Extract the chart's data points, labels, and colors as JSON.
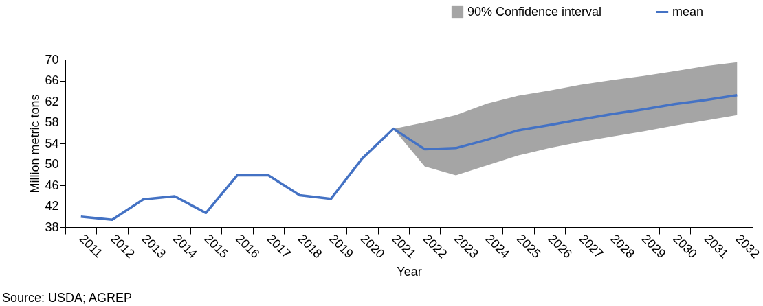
{
  "chart_data": {
    "type": "line",
    "ylabel": "Million metric tons",
    "xlabel": "Year",
    "categories": [
      "2011",
      "2012",
      "2013",
      "2014",
      "2015",
      "2016",
      "2017",
      "2018",
      "2019",
      "2020",
      "2021",
      "2022",
      "2023",
      "2024",
      "2025",
      "2026",
      "2027",
      "2028",
      "2029",
      "2030",
      "2031",
      "2032"
    ],
    "series": [
      {
        "name": "90% Confidence interval",
        "type": "area",
        "color": "#a5a5a5",
        "values": [
          null,
          null,
          null,
          null,
          null,
          null,
          null,
          null,
          null,
          null,
          null,
          null,
          null,
          null,
          null,
          null,
          null,
          null,
          null,
          null,
          null,
          null
        ],
        "lower": [
          null,
          null,
          null,
          null,
          null,
          null,
          null,
          null,
          null,
          null,
          56.8,
          49.6,
          47.9,
          49.8,
          51.7,
          53.1,
          54.3,
          55.3,
          56.3,
          57.4,
          58.4,
          59.4
        ],
        "upper": [
          null,
          null,
          null,
          null,
          null,
          null,
          null,
          null,
          null,
          null,
          56.8,
          58.0,
          59.4,
          61.6,
          63.1,
          64.1,
          65.2,
          66.1,
          66.9,
          67.8,
          68.8,
          69.5
        ]
      },
      {
        "name": "mean",
        "color": "#4472c4",
        "values": [
          40.0,
          39.4,
          43.3,
          43.9,
          40.7,
          47.9,
          47.9,
          44.1,
          43.4,
          51.1,
          56.8,
          52.9,
          53.1,
          54.7,
          56.5,
          57.5,
          58.6,
          59.6,
          60.5,
          61.5,
          62.3,
          63.2
        ]
      }
    ],
    "ylim": [
      38,
      70
    ],
    "yticks": [
      38,
      42,
      46,
      50,
      54,
      58,
      62,
      66,
      70
    ],
    "legend": "top right",
    "marker": "none",
    "line_style": "solid",
    "annotations": [
      "Source: USDA; AGREP"
    ]
  }
}
